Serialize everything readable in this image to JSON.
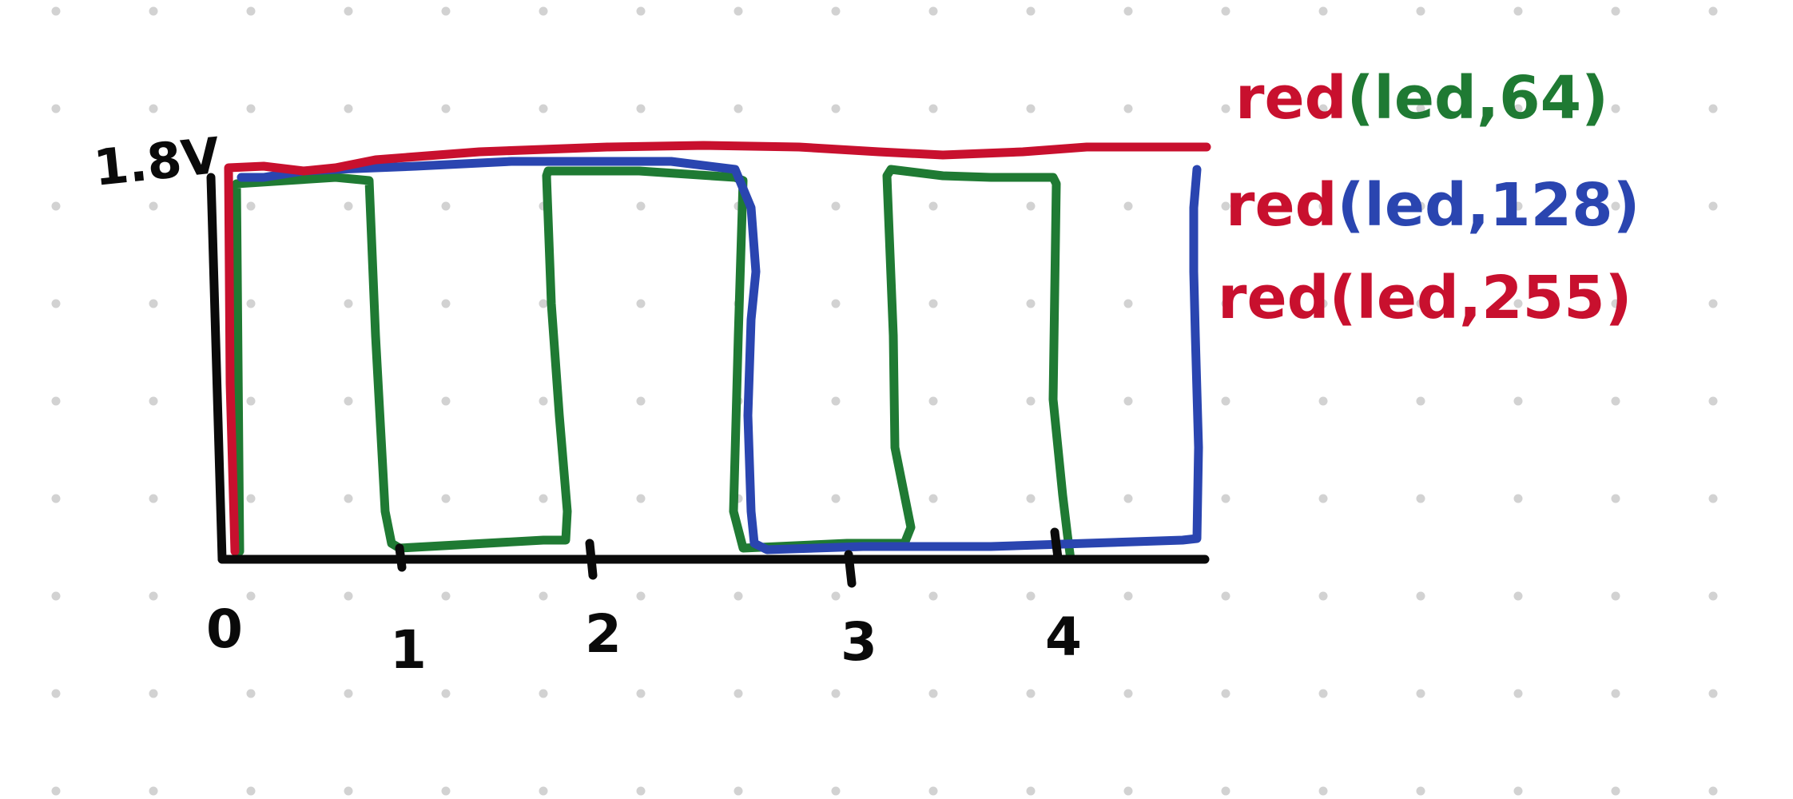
{
  "colors": {
    "background": "#ffffff",
    "dot": "#d2d2d2",
    "black": "#0a0a0a",
    "red": "#c8102e",
    "green": "#1f7a33",
    "blue": "#2a45b0"
  },
  "axis": {
    "y_label": "1.8V",
    "x_ticks": [
      "0",
      "1",
      "2",
      "3",
      "4"
    ]
  },
  "legend": [
    {
      "fn": "red",
      "paren_open": "(",
      "args": "led,64",
      "paren_close": ")",
      "fn_color": "red",
      "args_color": "green"
    },
    {
      "fn": "red",
      "paren_open": "(",
      "args": "led,128",
      "paren_close": ")",
      "fn_color": "red",
      "args_color": "blue"
    },
    {
      "fn": "red",
      "paren_open": "(",
      "args": "led,255",
      "paren_close": ")",
      "fn_color": "red",
      "args_color": "red"
    }
  ]
}
